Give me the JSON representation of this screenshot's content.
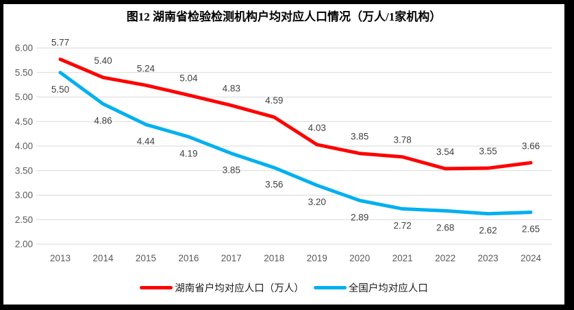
{
  "title": "图12 湖南省检验检测机构户均对应人口情况（万人/1家机构）",
  "chart_data": {
    "type": "line",
    "title": "图12 湖南省检验检测机构户均对应人口情况（万人/1家机构）",
    "categories": [
      "2013",
      "2014",
      "2015",
      "2016",
      "2017",
      "2018",
      "2019",
      "2020",
      "2021",
      "2022",
      "2023",
      "2024"
    ],
    "series": [
      {
        "id": "hunan",
        "name": "湖南省户均对应人口（万人）",
        "color": "#ff0000",
        "values": [
          5.77,
          5.4,
          5.24,
          5.04,
          4.83,
          4.59,
          4.03,
          3.85,
          3.78,
          3.54,
          3.55,
          3.66
        ],
        "label_position": "above"
      },
      {
        "id": "national",
        "name": "全国户均对应人口",
        "color": "#00b0f0",
        "values": [
          5.5,
          4.86,
          4.44,
          4.19,
          3.85,
          3.56,
          3.2,
          2.89,
          2.72,
          2.68,
          2.62,
          2.65
        ],
        "label_position": "below"
      }
    ],
    "ylim": [
      2.0,
      6.0
    ],
    "ytick_step": 0.5,
    "value_decimals": 2,
    "grid": true,
    "legend_position": "bottom",
    "xlabel": "",
    "ylabel": "",
    "colors": {
      "grid_line": "#d9d9d9",
      "axis_tick_text": "#595959",
      "data_label_text": "#404040",
      "frame_border": "#000000",
      "background": "#ffffff"
    }
  }
}
